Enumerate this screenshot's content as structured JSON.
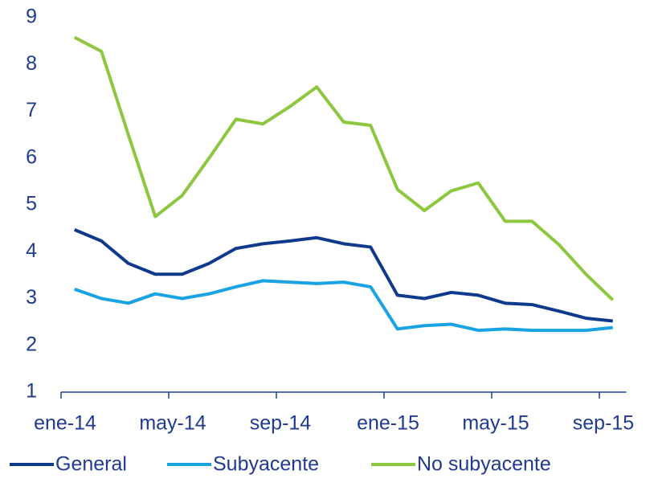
{
  "chart_data": {
    "type": "line",
    "categories": [
      "ene-14",
      null,
      null,
      null,
      "may-14",
      null,
      null,
      null,
      "sep-14",
      null,
      null,
      null,
      "ene-15",
      null,
      null,
      null,
      "may-15",
      null,
      null,
      null,
      "sep-15"
    ],
    "series": [
      {
        "name": "General",
        "color": "#0f3a8c",
        "values": [
          4.47,
          4.23,
          3.75,
          3.52,
          3.52,
          3.75,
          4.07,
          4.17,
          4.23,
          4.3,
          4.17,
          4.1,
          3.07,
          3.0,
          3.13,
          3.07,
          2.9,
          2.87,
          2.73,
          2.58,
          2.52
        ]
      },
      {
        "name": "Subyacente",
        "color": "#1aa3e2",
        "values": [
          3.2,
          3.0,
          2.9,
          3.1,
          3.0,
          3.1,
          3.25,
          3.38,
          3.35,
          3.32,
          3.35,
          3.25,
          2.35,
          2.42,
          2.45,
          2.32,
          2.35,
          2.32,
          2.32,
          2.32,
          2.38
        ]
      },
      {
        "name": "No subyacente",
        "color": "#8dc63f",
        "values": [
          8.58,
          8.28,
          6.5,
          4.75,
          5.2,
          6.0,
          6.83,
          6.73,
          7.1,
          7.52,
          6.77,
          6.7,
          5.33,
          4.88,
          5.3,
          5.47,
          4.65,
          4.65,
          4.15,
          3.52,
          2.97
        ]
      }
    ],
    "ylim": [
      1,
      9
    ],
    "yticks": [
      1,
      2,
      3,
      4,
      5,
      6,
      7,
      8,
      9
    ],
    "grid": false,
    "legend": "bottom"
  }
}
